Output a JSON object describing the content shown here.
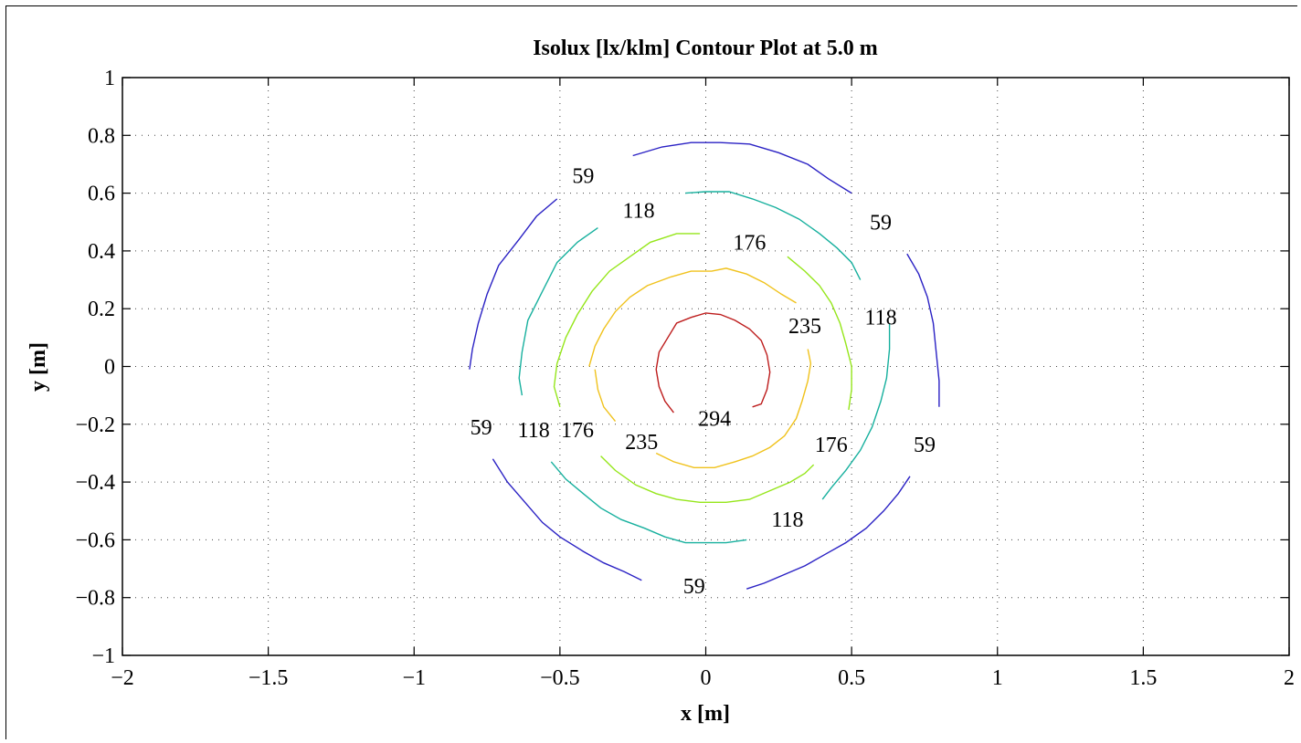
{
  "chart_data": {
    "type": "contour",
    "title": "Isolux [lx/klm] Contour Plot at 5.0 m",
    "xlabel": "x [m]",
    "ylabel": "y [m]",
    "xlim": [
      -2,
      2
    ],
    "ylim": [
      -1,
      1
    ],
    "grid": true,
    "x_ticks": [
      -2,
      -1.5,
      -1,
      -0.5,
      0,
      0.5,
      1,
      1.5,
      2
    ],
    "x_tick_labels": [
      "−2",
      "−1.5",
      "−1",
      "−0.5",
      "0",
      "0.5",
      "1",
      "1.5",
      "2"
    ],
    "y_ticks": [
      1,
      0.8,
      0.6,
      0.4,
      0.2,
      0,
      -0.2,
      -0.4,
      -0.6,
      -0.8,
      -1
    ],
    "y_tick_labels": [
      "1",
      "0.8",
      "0.6",
      "0.4",
      "0.2",
      "0",
      "−0.2",
      "−0.4",
      "−0.6",
      "−0.8",
      "−1"
    ],
    "levels": [
      {
        "level": 59,
        "color": "#2a21c4",
        "segments": [
          [
            [
              -0.51,
              0.58
            ],
            [
              -0.58,
              0.52
            ],
            [
              -0.64,
              0.44
            ],
            [
              -0.71,
              0.35
            ],
            [
              -0.75,
              0.25
            ],
            [
              -0.78,
              0.15
            ],
            [
              -0.8,
              0.06
            ],
            [
              -0.81,
              -0.01
            ]
          ],
          [
            [
              -0.73,
              -0.32
            ],
            [
              -0.68,
              -0.4
            ],
            [
              -0.62,
              -0.47
            ],
            [
              -0.56,
              -0.54
            ],
            [
              -0.5,
              -0.59
            ],
            [
              -0.42,
              -0.64
            ],
            [
              -0.35,
              -0.68
            ],
            [
              -0.28,
              -0.71
            ],
            [
              -0.22,
              -0.74
            ]
          ],
          [
            [
              -0.25,
              0.73
            ],
            [
              -0.15,
              0.76
            ],
            [
              -0.05,
              0.775
            ],
            [
              0.05,
              0.775
            ],
            [
              0.15,
              0.77
            ],
            [
              0.25,
              0.74
            ],
            [
              0.35,
              0.7
            ],
            [
              0.42,
              0.65
            ],
            [
              0.5,
              0.6
            ]
          ],
          [
            [
              0.69,
              0.39
            ],
            [
              0.73,
              0.32
            ],
            [
              0.76,
              0.24
            ],
            [
              0.78,
              0.15
            ],
            [
              0.79,
              0.05
            ],
            [
              0.8,
              -0.05
            ],
            [
              0.8,
              -0.14
            ]
          ],
          [
            [
              0.7,
              -0.38
            ],
            [
              0.66,
              -0.44
            ],
            [
              0.61,
              -0.5
            ],
            [
              0.55,
              -0.56
            ],
            [
              0.48,
              -0.61
            ],
            [
              0.41,
              -0.65
            ],
            [
              0.34,
              -0.69
            ],
            [
              0.27,
              -0.72
            ],
            [
              0.2,
              -0.75
            ],
            [
              0.14,
              -0.77
            ]
          ]
        ],
        "labels": [
          [
            -0.42,
            0.66
          ],
          [
            0.6,
            0.5
          ],
          [
            -0.77,
            -0.21
          ],
          [
            0.75,
            -0.27
          ],
          [
            -0.04,
            -0.76
          ]
        ]
      },
      {
        "level": 118,
        "color": "#17b09e",
        "segments": [
          [
            [
              -0.37,
              0.48
            ],
            [
              -0.44,
              0.43
            ],
            [
              -0.51,
              0.36
            ],
            [
              -0.56,
              0.26
            ],
            [
              -0.61,
              0.16
            ],
            [
              -0.63,
              0.05
            ],
            [
              -0.64,
              -0.04
            ],
            [
              -0.63,
              -0.1
            ]
          ],
          [
            [
              -0.53,
              -0.33
            ],
            [
              -0.48,
              -0.39
            ],
            [
              -0.42,
              -0.44
            ],
            [
              -0.36,
              -0.49
            ],
            [
              -0.29,
              -0.53
            ],
            [
              -0.21,
              -0.56
            ],
            [
              -0.14,
              -0.59
            ],
            [
              -0.07,
              -0.61
            ],
            [
              0.0,
              -0.61
            ],
            [
              0.07,
              -0.61
            ],
            [
              0.14,
              -0.6
            ]
          ],
          [
            [
              -0.07,
              0.6
            ],
            [
              0.0,
              0.605
            ],
            [
              0.08,
              0.605
            ],
            [
              0.16,
              0.58
            ],
            [
              0.24,
              0.55
            ],
            [
              0.32,
              0.51
            ],
            [
              0.39,
              0.46
            ],
            [
              0.45,
              0.41
            ],
            [
              0.5,
              0.36
            ],
            [
              0.53,
              0.3
            ]
          ],
          [
            [
              0.63,
              0.15
            ],
            [
              0.63,
              0.06
            ],
            [
              0.62,
              -0.04
            ],
            [
              0.6,
              -0.12
            ],
            [
              0.57,
              -0.21
            ],
            [
              0.53,
              -0.29
            ],
            [
              0.48,
              -0.36
            ],
            [
              0.43,
              -0.42
            ],
            [
              0.4,
              -0.46
            ]
          ]
        ],
        "labels": [
          [
            -0.23,
            0.54
          ],
          [
            0.6,
            0.17
          ],
          [
            -0.59,
            -0.22
          ],
          [
            0.28,
            -0.53
          ]
        ]
      },
      {
        "level": 176,
        "color": "#95e61a",
        "segments": [
          [
            [
              -0.02,
              0.46
            ],
            [
              -0.1,
              0.46
            ],
            [
              -0.19,
              0.43
            ],
            [
              -0.26,
              0.38
            ],
            [
              -0.33,
              0.33
            ],
            [
              -0.39,
              0.26
            ],
            [
              -0.44,
              0.18
            ],
            [
              -0.48,
              0.1
            ],
            [
              -0.51,
              0.01
            ],
            [
              -0.52,
              -0.07
            ],
            [
              -0.5,
              -0.14
            ]
          ],
          [
            [
              -0.36,
              -0.31
            ],
            [
              -0.31,
              -0.36
            ],
            [
              -0.24,
              -0.41
            ],
            [
              -0.17,
              -0.44
            ],
            [
              -0.1,
              -0.46
            ],
            [
              -0.02,
              -0.47
            ],
            [
              0.07,
              -0.47
            ],
            [
              0.15,
              -0.46
            ],
            [
              0.22,
              -0.43
            ],
            [
              0.29,
              -0.4
            ],
            [
              0.34,
              -0.37
            ],
            [
              0.37,
              -0.34
            ]
          ],
          [
            [
              0.28,
              0.38
            ],
            [
              0.34,
              0.33
            ],
            [
              0.39,
              0.28
            ],
            [
              0.43,
              0.22
            ],
            [
              0.46,
              0.15
            ],
            [
              0.48,
              0.08
            ],
            [
              0.5,
              0.0
            ],
            [
              0.5,
              -0.08
            ],
            [
              0.49,
              -0.15
            ]
          ]
        ],
        "labels": [
          [
            0.15,
            0.43
          ],
          [
            -0.44,
            -0.22
          ],
          [
            0.43,
            -0.27
          ]
        ]
      },
      {
        "level": 235,
        "color": "#f0c21c",
        "segments": [
          [
            [
              -0.4,
              0.0
            ],
            [
              -0.38,
              0.07
            ],
            [
              -0.35,
              0.13
            ],
            [
              -0.31,
              0.19
            ],
            [
              -0.26,
              0.24
            ],
            [
              -0.2,
              0.28
            ],
            [
              -0.12,
              0.31
            ],
            [
              -0.05,
              0.33
            ],
            [
              0.02,
              0.33
            ],
            [
              0.07,
              0.34
            ],
            [
              0.14,
              0.32
            ],
            [
              0.2,
              0.29
            ],
            [
              0.26,
              0.25
            ],
            [
              0.31,
              0.22
            ]
          ],
          [
            [
              -0.38,
              -0.01
            ],
            [
              -0.37,
              -0.08
            ],
            [
              -0.35,
              -0.14
            ],
            [
              -0.31,
              -0.19
            ]
          ],
          [
            [
              -0.17,
              -0.3
            ],
            [
              -0.11,
              -0.33
            ],
            [
              -0.04,
              -0.35
            ],
            [
              0.03,
              -0.35
            ],
            [
              0.1,
              -0.33
            ],
            [
              0.16,
              -0.31
            ],
            [
              0.22,
              -0.28
            ],
            [
              0.27,
              -0.24
            ],
            [
              0.31,
              -0.18
            ],
            [
              0.33,
              -0.12
            ],
            [
              0.35,
              -0.05
            ],
            [
              0.36,
              0.01
            ],
            [
              0.35,
              0.06
            ]
          ]
        ],
        "labels": [
          [
            -0.22,
            -0.26
          ],
          [
            0.34,
            0.14
          ]
        ]
      },
      {
        "level": 294,
        "color": "#bd1c1c",
        "segments": [
          [
            [
              -0.11,
              -0.16
            ],
            [
              -0.14,
              -0.12
            ],
            [
              -0.16,
              -0.07
            ],
            [
              -0.17,
              -0.01
            ],
            [
              -0.16,
              0.05
            ],
            [
              -0.13,
              0.1
            ],
            [
              -0.1,
              0.15
            ],
            [
              -0.05,
              0.17
            ],
            [
              0.0,
              0.185
            ],
            [
              0.05,
              0.18
            ],
            [
              0.1,
              0.16
            ],
            [
              0.15,
              0.13
            ],
            [
              0.19,
              0.09
            ],
            [
              0.21,
              0.04
            ],
            [
              0.22,
              -0.02
            ],
            [
              0.21,
              -0.08
            ],
            [
              0.19,
              -0.13
            ],
            [
              0.16,
              -0.14
            ]
          ]
        ],
        "labels": [
          [
            0.03,
            -0.18
          ]
        ]
      }
    ]
  }
}
